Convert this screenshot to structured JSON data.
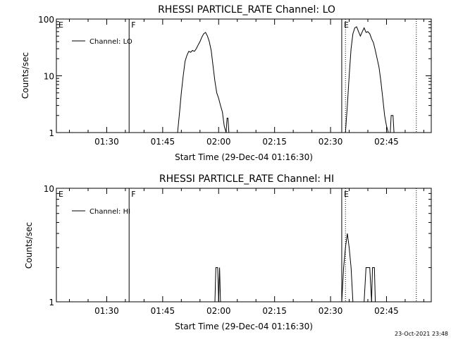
{
  "figure": {
    "footer_timestamp": "23-Oct-2021 23:48"
  },
  "chart_data": [
    {
      "type": "line",
      "title": "RHESSI PARTICLE_RATE Channel: LO",
      "xlabel": "Start Time (29-Dec-04 01:16:30)",
      "ylabel": "Counts/sec",
      "y_scale": "log",
      "ylim": [
        1,
        100
      ],
      "y_ticks": [
        1,
        10,
        100
      ],
      "y_tick_labels": [
        "1",
        "10",
        "100"
      ],
      "xlim": [
        "01:16:30",
        "02:57:00"
      ],
      "x_ticks": [
        "01:30",
        "01:45",
        "02:00",
        "02:15",
        "02:30",
        "02:45"
      ],
      "legend": {
        "label": "Channel: LO",
        "placement": "top-left"
      },
      "markers": [
        {
          "label": "E",
          "time": "01:16:30",
          "style": "none"
        },
        {
          "label": "F",
          "time": "01:36:00",
          "style": "solid"
        },
        {
          "label": "E",
          "time": "02:33:00",
          "style": "solid"
        },
        {
          "label": "",
          "time": "02:34:00",
          "style": "dotted"
        },
        {
          "label": "",
          "time": "02:53:00",
          "style": "dotted"
        }
      ],
      "series": [
        {
          "name": "Channel: LO",
          "segments": [
            [
              [
                "01:49:00",
                1
              ],
              [
                "01:49:30",
                2.2
              ],
              [
                "01:50:00",
                5
              ],
              [
                "01:50:30",
                10
              ],
              [
                "01:51:00",
                18
              ],
              [
                "01:51:30",
                23
              ],
              [
                "01:52:00",
                27
              ],
              [
                "01:52:30",
                26
              ],
              [
                "01:53:00",
                28
              ],
              [
                "01:53:30",
                27
              ],
              [
                "01:54:00",
                30
              ],
              [
                "01:54:30",
                35
              ],
              [
                "01:55:00",
                40
              ],
              [
                "01:55:30",
                48
              ],
              [
                "01:56:00",
                55
              ],
              [
                "01:56:30",
                58
              ],
              [
                "01:57:00",
                50
              ],
              [
                "01:57:30",
                40
              ],
              [
                "01:58:00",
                28
              ],
              [
                "01:58:30",
                15
              ],
              [
                "01:59:00",
                8
              ],
              [
                "01:59:30",
                5
              ],
              [
                "02:00:00",
                4
              ],
              [
                "02:00:30",
                3
              ],
              [
                "02:01:00",
                2.3
              ],
              [
                "02:01:30",
                1.3
              ],
              [
                "02:02:00",
                1
              ]
            ],
            [
              [
                "02:02:00",
                1
              ],
              [
                "02:02:15",
                1.8
              ],
              [
                "02:02:30",
                1.8
              ],
              [
                "02:02:45",
                1
              ]
            ],
            [
              [
                "02:34:00",
                1
              ],
              [
                "02:34:30",
                3
              ],
              [
                "02:35:00",
                10
              ],
              [
                "02:35:30",
                30
              ],
              [
                "02:36:00",
                55
              ],
              [
                "02:36:30",
                70
              ],
              [
                "02:37:00",
                73
              ],
              [
                "02:37:30",
                60
              ],
              [
                "02:38:00",
                50
              ],
              [
                "02:38:30",
                60
              ],
              [
                "02:39:00",
                70
              ],
              [
                "02:39:30",
                58
              ],
              [
                "02:40:00",
                60
              ],
              [
                "02:40:30",
                55
              ],
              [
                "02:41:00",
                45
              ],
              [
                "02:41:30",
                38
              ],
              [
                "02:42:00",
                28
              ],
              [
                "02:42:30",
                20
              ],
              [
                "02:43:00",
                14
              ],
              [
                "02:43:30",
                8
              ],
              [
                "02:44:00",
                4
              ],
              [
                "02:44:30",
                2
              ],
              [
                "02:45:00",
                1.3
              ],
              [
                "02:45:30",
                1
              ]
            ],
            [
              [
                "02:46:00",
                1
              ],
              [
                "02:46:15",
                2
              ],
              [
                "02:46:45",
                2
              ],
              [
                "02:47:00",
                1
              ]
            ]
          ]
        }
      ]
    },
    {
      "type": "line",
      "title": "RHESSI PARTICLE_RATE Channel: HI",
      "xlabel": "Start Time (29-Dec-04 01:16:30)",
      "ylabel": "Counts/sec",
      "y_scale": "log",
      "ylim": [
        1,
        10
      ],
      "y_ticks": [
        1,
        10
      ],
      "y_tick_labels": [
        "1",
        "10"
      ],
      "xlim": [
        "01:16:30",
        "02:57:00"
      ],
      "x_ticks": [
        "01:30",
        "01:45",
        "02:00",
        "02:15",
        "02:30",
        "02:45"
      ],
      "legend": {
        "label": "Channel: HI",
        "placement": "top-left"
      },
      "markers": [
        {
          "label": "E",
          "time": "01:16:30",
          "style": "none"
        },
        {
          "label": "F",
          "time": "01:36:00",
          "style": "solid"
        },
        {
          "label": "E",
          "time": "02:33:00",
          "style": "solid"
        },
        {
          "label": "",
          "time": "02:34:00",
          "style": "dotted"
        },
        {
          "label": "",
          "time": "02:53:00",
          "style": "dotted"
        }
      ],
      "series": [
        {
          "name": "Channel: HI",
          "segments": [
            [
              [
                "01:59:00",
                1
              ],
              [
                "01:59:15",
                2
              ],
              [
                "01:59:45",
                2
              ],
              [
                "02:00:00",
                1
              ]
            ],
            [
              [
                "02:00:00",
                1
              ],
              [
                "02:00:15",
                2
              ],
              [
                "02:00:30",
                1
              ]
            ],
            [
              [
                "02:33:00",
                1
              ],
              [
                "02:33:30",
                2
              ],
              [
                "02:34:00",
                3
              ],
              [
                "02:34:30",
                4
              ],
              [
                "02:35:00",
                3
              ],
              [
                "02:35:30",
                2
              ],
              [
                "02:36:00",
                1
              ]
            ],
            [
              [
                "02:39:00",
                1
              ],
              [
                "02:39:30",
                2
              ],
              [
                "02:40:30",
                2
              ],
              [
                "02:41:00",
                1
              ]
            ],
            [
              [
                "02:41:00",
                1
              ],
              [
                "02:41:15",
                2
              ],
              [
                "02:41:45",
                2
              ],
              [
                "02:42:00",
                1
              ]
            ]
          ]
        }
      ]
    }
  ]
}
